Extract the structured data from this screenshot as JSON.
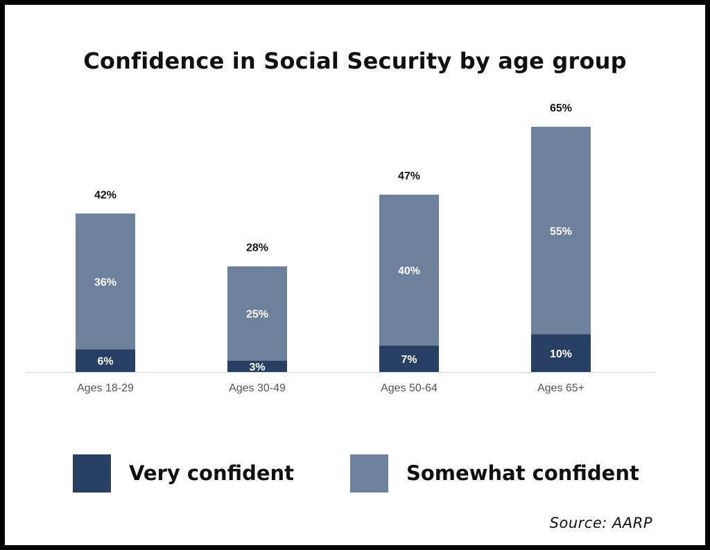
{
  "title": "Confidence in Social Security by age group",
  "source": "Source: AARP",
  "colors": {
    "very": "#263f63",
    "somewhat": "#6d819c",
    "axis": "#cfd5dc"
  },
  "legend": [
    {
      "label": "Very confident",
      "color_key": "very"
    },
    {
      "label": "Somewhat confident",
      "color_key": "somewhat"
    }
  ],
  "chart_data": {
    "type": "bar",
    "stacked": true,
    "title": "Confidence in Social Security by age group",
    "categories": [
      "Ages 18-29",
      "Ages 30-49",
      "Ages 50-64",
      "Ages 65+"
    ],
    "series": [
      {
        "name": "Very confident",
        "values": [
          6,
          3,
          7,
          10
        ],
        "labels": [
          "6%",
          "3%",
          "7%",
          "10%"
        ]
      },
      {
        "name": "Somewhat confident",
        "values": [
          36,
          25,
          40,
          55
        ],
        "labels": [
          "36%",
          "25%",
          "40%",
          "55%"
        ]
      }
    ],
    "totals": [
      42,
      28,
      47,
      65
    ],
    "total_labels": [
      "42%",
      "28%",
      "47%",
      "65%"
    ],
    "ylim": [
      0,
      65
    ],
    "grid": false,
    "legend_position": "bottom"
  }
}
